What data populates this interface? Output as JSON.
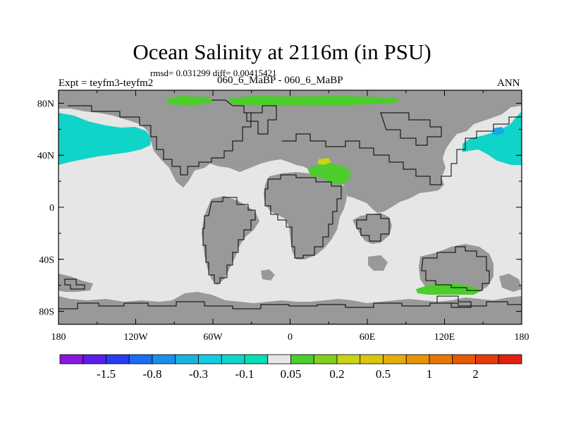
{
  "title": "Ocean Salinity at 2116m (in PSU)",
  "stats": "rmsd= 0.031299 diff= 0.00415421",
  "expt": "Expt = teyfm3-teyfm2",
  "subtitle": "060_6_MaBP - 060_6_MaBP",
  "season": "ANN",
  "map": {
    "projection": "cylindrical-equidistant",
    "lon_range": [
      -180,
      180
    ],
    "lat_range": [
      -90,
      90
    ],
    "x_tick_labels": [
      "180",
      "120W",
      "60W",
      "0",
      "60E",
      "120E",
      "180"
    ],
    "y_tick_labels": [
      "80N",
      "40N",
      "0",
      "40S",
      "80S"
    ],
    "colors": {
      "land": "#999999",
      "ocean_neutral": "#e6e6e6",
      "coastline": "#000000"
    }
  },
  "colorbar": {
    "colors": [
      "#8a16e0",
      "#5a1ee8",
      "#2a3cf0",
      "#1a6cf0",
      "#1a90ea",
      "#18b4e0",
      "#12cce0",
      "#10d4c8",
      "#08dcb4",
      "#e6e6e6",
      "#4ccd2c",
      "#80d020",
      "#c8d414",
      "#dcc410",
      "#e4ac0c",
      "#e49404",
      "#e47804",
      "#e45808",
      "#e43a0c",
      "#e02010"
    ],
    "labels": [
      "-1.5",
      "-0.8",
      "-0.3",
      "-0.1",
      "0.05",
      "0.2",
      "0.5",
      "1",
      "2"
    ]
  }
}
